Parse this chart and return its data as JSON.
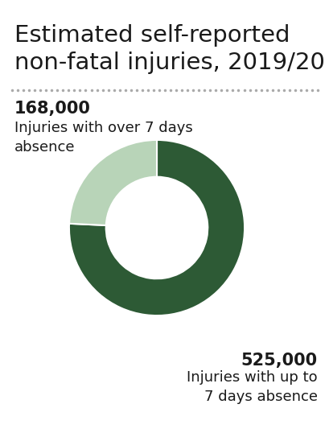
{
  "title_line1": "Estimated self-reported",
  "title_line2": "non-fatal injuries, 2019/20",
  "title_fontsize": 21,
  "title_color": "#1a1a1a",
  "background_color": "#ffffff",
  "values": [
    525000,
    168000
  ],
  "colors": [
    "#2d5a35",
    "#b8d4b8"
  ],
  "donut_width": 0.42,
  "label1_number": "168,000",
  "label1_text": "Injuries with over 7 days\nabsence",
  "label2_number": "525,000",
  "label2_text": "Injuries with up to\n7 days absence",
  "label_fontsize_number": 15,
  "label_fontsize_text": 13,
  "dotted_line_color": "#aaaaaa",
  "start_angle": 90
}
